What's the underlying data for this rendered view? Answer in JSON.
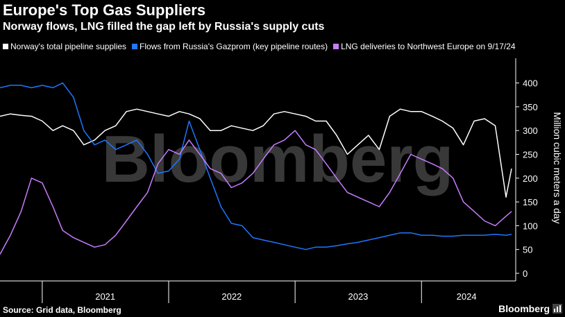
{
  "chart_data": {
    "type": "line",
    "title": "Europe's Top Gas Suppliers",
    "subtitle": "Norway flows, LNG filled the gap left by Russia's supply cuts",
    "ylabel": "Million cubic meters a day",
    "ylim": [
      0,
      450
    ],
    "y_ticks": [
      0,
      50,
      100,
      150,
      200,
      250,
      300,
      350,
      400
    ],
    "x_ticks": [
      "2021",
      "2022",
      "2023",
      "2024"
    ],
    "x_range": [
      "2020-09-01",
      "2024-09-17"
    ],
    "grid": false,
    "legend_position": "top",
    "series": [
      {
        "name": "Norway's total pipeline supplies",
        "color": "#ffffff",
        "points": [
          [
            "2020-09-01",
            330
          ],
          [
            "2020-10-01",
            335
          ],
          [
            "2020-11-01",
            332
          ],
          [
            "2020-12-01",
            330
          ],
          [
            "2021-01-01",
            320
          ],
          [
            "2021-02-01",
            300
          ],
          [
            "2021-03-01",
            310
          ],
          [
            "2021-04-01",
            300
          ],
          [
            "2021-05-01",
            270
          ],
          [
            "2021-06-01",
            280
          ],
          [
            "2021-07-01",
            300
          ],
          [
            "2021-08-01",
            310
          ],
          [
            "2021-09-01",
            340
          ],
          [
            "2021-10-01",
            345
          ],
          [
            "2021-11-01",
            340
          ],
          [
            "2021-12-01",
            335
          ],
          [
            "2022-01-01",
            330
          ],
          [
            "2022-02-01",
            340
          ],
          [
            "2022-03-01",
            335
          ],
          [
            "2022-04-01",
            325
          ],
          [
            "2022-05-01",
            300
          ],
          [
            "2022-06-01",
            300
          ],
          [
            "2022-07-01",
            310
          ],
          [
            "2022-08-01",
            305
          ],
          [
            "2022-09-01",
            300
          ],
          [
            "2022-10-01",
            310
          ],
          [
            "2022-11-01",
            335
          ],
          [
            "2022-12-01",
            340
          ],
          [
            "2023-01-01",
            335
          ],
          [
            "2023-02-01",
            330
          ],
          [
            "2023-03-01",
            320
          ],
          [
            "2023-04-01",
            320
          ],
          [
            "2023-05-01",
            290
          ],
          [
            "2023-06-01",
            250
          ],
          [
            "2023-07-01",
            270
          ],
          [
            "2023-08-01",
            290
          ],
          [
            "2023-09-01",
            260
          ],
          [
            "2023-10-01",
            330
          ],
          [
            "2023-11-01",
            345
          ],
          [
            "2023-12-01",
            340
          ],
          [
            "2024-01-01",
            340
          ],
          [
            "2024-02-01",
            330
          ],
          [
            "2024-03-01",
            320
          ],
          [
            "2024-04-01",
            305
          ],
          [
            "2024-05-01",
            270
          ],
          [
            "2024-06-01",
            320
          ],
          [
            "2024-07-01",
            325
          ],
          [
            "2024-08-01",
            310
          ],
          [
            "2024-09-01",
            160
          ],
          [
            "2024-09-17",
            220
          ]
        ]
      },
      {
        "name": "Flows from Russia's Gazprom (key pipeline routes)",
        "color": "#1f77ff",
        "points": [
          [
            "2020-09-01",
            390
          ],
          [
            "2020-10-01",
            395
          ],
          [
            "2020-11-01",
            395
          ],
          [
            "2020-12-01",
            390
          ],
          [
            "2021-01-01",
            395
          ],
          [
            "2021-02-01",
            390
          ],
          [
            "2021-03-01",
            400
          ],
          [
            "2021-04-01",
            370
          ],
          [
            "2021-05-01",
            300
          ],
          [
            "2021-06-01",
            270
          ],
          [
            "2021-07-01",
            280
          ],
          [
            "2021-08-01",
            260
          ],
          [
            "2021-09-01",
            270
          ],
          [
            "2021-10-01",
            280
          ],
          [
            "2021-11-01",
            250
          ],
          [
            "2021-12-01",
            210
          ],
          [
            "2022-01-01",
            215
          ],
          [
            "2022-02-01",
            240
          ],
          [
            "2022-03-01",
            320
          ],
          [
            "2022-04-01",
            260
          ],
          [
            "2022-05-01",
            200
          ],
          [
            "2022-06-01",
            140
          ],
          [
            "2022-07-01",
            105
          ],
          [
            "2022-08-01",
            100
          ],
          [
            "2022-09-01",
            75
          ],
          [
            "2022-10-01",
            70
          ],
          [
            "2022-11-01",
            65
          ],
          [
            "2022-12-01",
            60
          ],
          [
            "2023-01-01",
            55
          ],
          [
            "2023-02-01",
            50
          ],
          [
            "2023-03-01",
            55
          ],
          [
            "2023-04-01",
            55
          ],
          [
            "2023-05-01",
            58
          ],
          [
            "2023-06-01",
            62
          ],
          [
            "2023-07-01",
            65
          ],
          [
            "2023-08-01",
            70
          ],
          [
            "2023-09-01",
            75
          ],
          [
            "2023-10-01",
            80
          ],
          [
            "2023-11-01",
            85
          ],
          [
            "2023-12-01",
            85
          ],
          [
            "2024-01-01",
            80
          ],
          [
            "2024-02-01",
            80
          ],
          [
            "2024-03-01",
            78
          ],
          [
            "2024-04-01",
            78
          ],
          [
            "2024-05-01",
            80
          ],
          [
            "2024-06-01",
            80
          ],
          [
            "2024-07-01",
            80
          ],
          [
            "2024-08-01",
            82
          ],
          [
            "2024-09-01",
            80
          ],
          [
            "2024-09-17",
            82
          ]
        ]
      },
      {
        "name": "LNG deliveries to Northwest Europe on 9/17/24",
        "color": "#c77dff",
        "points": [
          [
            "2020-09-01",
            40
          ],
          [
            "2020-10-01",
            80
          ],
          [
            "2020-11-01",
            130
          ],
          [
            "2020-12-01",
            200
          ],
          [
            "2021-01-01",
            190
          ],
          [
            "2021-02-01",
            140
          ],
          [
            "2021-03-01",
            90
          ],
          [
            "2021-04-01",
            75
          ],
          [
            "2021-05-01",
            65
          ],
          [
            "2021-06-01",
            55
          ],
          [
            "2021-07-01",
            60
          ],
          [
            "2021-08-01",
            80
          ],
          [
            "2021-09-01",
            110
          ],
          [
            "2021-10-01",
            140
          ],
          [
            "2021-11-01",
            170
          ],
          [
            "2021-12-01",
            230
          ],
          [
            "2022-01-01",
            260
          ],
          [
            "2022-02-01",
            250
          ],
          [
            "2022-03-01",
            280
          ],
          [
            "2022-04-01",
            250
          ],
          [
            "2022-05-01",
            220
          ],
          [
            "2022-06-01",
            210
          ],
          [
            "2022-07-01",
            180
          ],
          [
            "2022-08-01",
            190
          ],
          [
            "2022-09-01",
            210
          ],
          [
            "2022-10-01",
            240
          ],
          [
            "2022-11-01",
            270
          ],
          [
            "2022-12-01",
            280
          ],
          [
            "2023-01-01",
            300
          ],
          [
            "2023-02-01",
            270
          ],
          [
            "2023-03-01",
            260
          ],
          [
            "2023-04-01",
            230
          ],
          [
            "2023-05-01",
            200
          ],
          [
            "2023-06-01",
            170
          ],
          [
            "2023-07-01",
            160
          ],
          [
            "2023-08-01",
            150
          ],
          [
            "2023-09-01",
            140
          ],
          [
            "2023-10-01",
            170
          ],
          [
            "2023-11-01",
            210
          ],
          [
            "2023-12-01",
            250
          ],
          [
            "2024-01-01",
            240
          ],
          [
            "2024-02-01",
            230
          ],
          [
            "2024-03-01",
            220
          ],
          [
            "2024-04-01",
            200
          ],
          [
            "2024-05-01",
            150
          ],
          [
            "2024-06-01",
            130
          ],
          [
            "2024-07-01",
            110
          ],
          [
            "2024-08-01",
            100
          ],
          [
            "2024-09-01",
            120
          ],
          [
            "2024-09-17",
            130
          ]
        ]
      }
    ],
    "watermark": "Bloomberg",
    "source": "Source: Grid data, Bloomberg"
  },
  "brand": "Bloomberg"
}
